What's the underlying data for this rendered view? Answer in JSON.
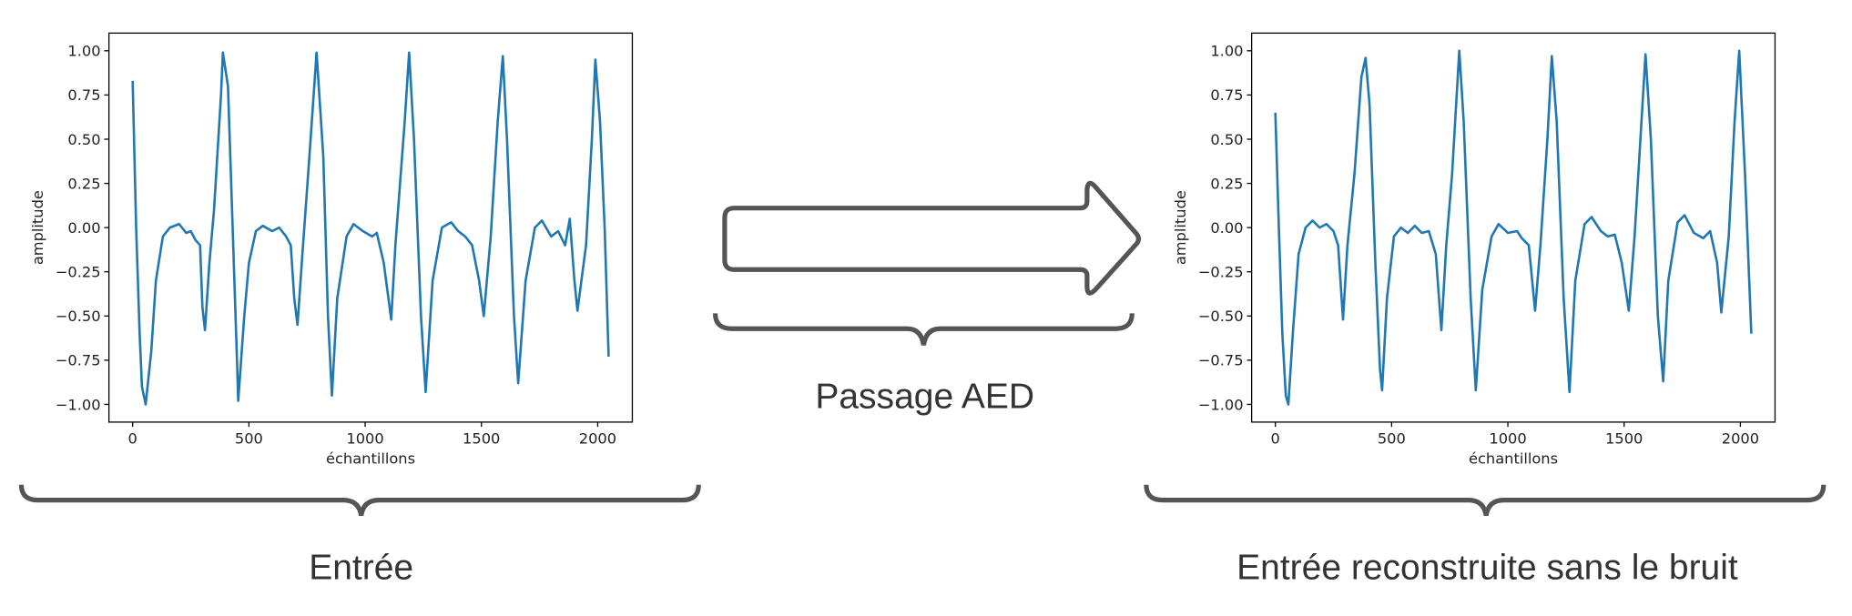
{
  "chart_data": [
    {
      "type": "line",
      "xlabel": "échantillons",
      "ylabel": "amplitude",
      "xlim": [
        -102,
        2149
      ],
      "ylim": [
        -1.1,
        1.1
      ],
      "xticks": [
        0,
        500,
        1000,
        1500,
        2000
      ],
      "yticks": [
        {
          "value": 1,
          "label": "1.00"
        },
        {
          "value": 0.75,
          "label": "0.75"
        },
        {
          "value": 0.5,
          "label": "0.50"
        },
        {
          "value": 0.25,
          "label": "0.25"
        },
        {
          "value": 0,
          "label": "0.00"
        },
        {
          "value": -0.25,
          "label": "−0.25"
        },
        {
          "value": -0.5,
          "label": "−0.50"
        },
        {
          "value": -0.75,
          "label": "−0.75"
        },
        {
          "value": -1,
          "label": "−1.00"
        }
      ],
      "x": [
        0,
        15,
        20,
        30,
        40,
        56,
        80,
        100,
        130,
        160,
        200,
        230,
        250,
        270,
        290,
        300,
        311,
        330,
        350,
        380,
        388,
        410,
        430,
        450,
        454,
        480,
        500,
        530,
        560,
        600,
        630,
        660,
        680,
        695,
        709,
        730,
        760,
        791,
        820,
        840,
        857,
        880,
        920,
        950,
        990,
        1030,
        1050,
        1080,
        1112,
        1130,
        1170,
        1189,
        1210,
        1240,
        1260,
        1290,
        1330,
        1370,
        1400,
        1430,
        1460,
        1490,
        1510,
        1540,
        1570,
        1592,
        1610,
        1640,
        1658,
        1690,
        1730,
        1760,
        1800,
        1830,
        1860,
        1880,
        1900,
        1913,
        1950,
        1975,
        1990,
        2010,
        2030,
        2047
      ],
      "series": [
        {
          "color": "#1f77b4",
          "values": [
            0.83,
            0.0,
            -0.2,
            -0.6,
            -0.9,
            -1.0,
            -0.7,
            -0.3,
            -0.05,
            0.0,
            0.02,
            -0.03,
            -0.02,
            -0.07,
            -0.1,
            -0.45,
            -0.58,
            -0.2,
            0.1,
            0.75,
            0.99,
            0.8,
            0.0,
            -0.8,
            -0.98,
            -0.5,
            -0.2,
            -0.02,
            0.01,
            -0.02,
            0.0,
            -0.05,
            -0.1,
            -0.4,
            -0.55,
            -0.15,
            0.4,
            0.99,
            0.4,
            -0.5,
            -0.95,
            -0.4,
            -0.05,
            0.02,
            -0.02,
            -0.05,
            -0.03,
            -0.2,
            -0.52,
            -0.1,
            0.6,
            0.99,
            0.5,
            -0.5,
            -0.93,
            -0.3,
            0.0,
            0.03,
            -0.02,
            -0.05,
            -0.1,
            -0.3,
            -0.5,
            -0.05,
            0.6,
            0.97,
            0.5,
            -0.5,
            -0.88,
            -0.3,
            0.0,
            0.04,
            -0.05,
            -0.02,
            -0.1,
            0.05,
            -0.3,
            -0.47,
            -0.1,
            0.5,
            0.95,
            0.6,
            0.0,
            -0.73
          ]
        }
      ]
    },
    {
      "type": "line",
      "xlabel": "échantillons",
      "ylabel": "amplitude",
      "xlim": [
        -102,
        2149
      ],
      "ylim": [
        -1.1,
        1.1
      ],
      "xticks": [
        0,
        500,
        1000,
        1500,
        2000
      ],
      "yticks": [
        {
          "value": 1,
          "label": "1.00"
        },
        {
          "value": 0.75,
          "label": "0.75"
        },
        {
          "value": 0.5,
          "label": "0.50"
        },
        {
          "value": 0.25,
          "label": "0.25"
        },
        {
          "value": 0,
          "label": "0.00"
        },
        {
          "value": -0.25,
          "label": "−0.25"
        },
        {
          "value": -0.5,
          "label": "−0.50"
        },
        {
          "value": -0.75,
          "label": "−0.75"
        },
        {
          "value": -1,
          "label": "−1.00"
        }
      ],
      "x": [
        0,
        15,
        30,
        45,
        56,
        75,
        100,
        130,
        160,
        190,
        220,
        250,
        270,
        291,
        310,
        340,
        370,
        388,
        405,
        430,
        450,
        459,
        480,
        510,
        540,
        570,
        600,
        630,
        660,
        690,
        714,
        735,
        760,
        791,
        810,
        840,
        862,
        890,
        930,
        960,
        1000,
        1040,
        1060,
        1090,
        1117,
        1140,
        1170,
        1189,
        1210,
        1240,
        1265,
        1290,
        1330,
        1360,
        1400,
        1430,
        1460,
        1490,
        1520,
        1545,
        1570,
        1592,
        1615,
        1645,
        1668,
        1690,
        1730,
        1760,
        1800,
        1840,
        1870,
        1900,
        1918,
        1950,
        1975,
        1995,
        2020,
        2047
      ],
      "series": [
        {
          "color": "#1f77b4",
          "values": [
            0.65,
            0.0,
            -0.6,
            -0.95,
            -1.0,
            -0.6,
            -0.15,
            0.0,
            0.04,
            0.0,
            0.02,
            -0.02,
            -0.1,
            -0.52,
            -0.1,
            0.3,
            0.85,
            0.96,
            0.7,
            -0.2,
            -0.8,
            -0.92,
            -0.4,
            -0.05,
            0.0,
            -0.03,
            0.01,
            -0.03,
            -0.02,
            -0.15,
            -0.58,
            -0.1,
            0.3,
            1.0,
            0.6,
            -0.4,
            -0.92,
            -0.35,
            -0.05,
            0.02,
            -0.03,
            -0.02,
            -0.06,
            -0.1,
            -0.47,
            -0.1,
            0.5,
            0.97,
            0.6,
            -0.4,
            -0.93,
            -0.3,
            0.02,
            0.06,
            -0.02,
            -0.05,
            -0.04,
            -0.2,
            -0.47,
            -0.05,
            0.5,
            0.98,
            0.5,
            -0.5,
            -0.87,
            -0.3,
            0.03,
            0.07,
            -0.03,
            -0.06,
            -0.02,
            -0.2,
            -0.48,
            -0.05,
            0.6,
            1.0,
            0.3,
            -0.6
          ]
        }
      ]
    }
  ],
  "labels": {
    "input": "Entrée",
    "process": "Passage AED",
    "output": "Entrée reconstruite sans le bruit"
  }
}
